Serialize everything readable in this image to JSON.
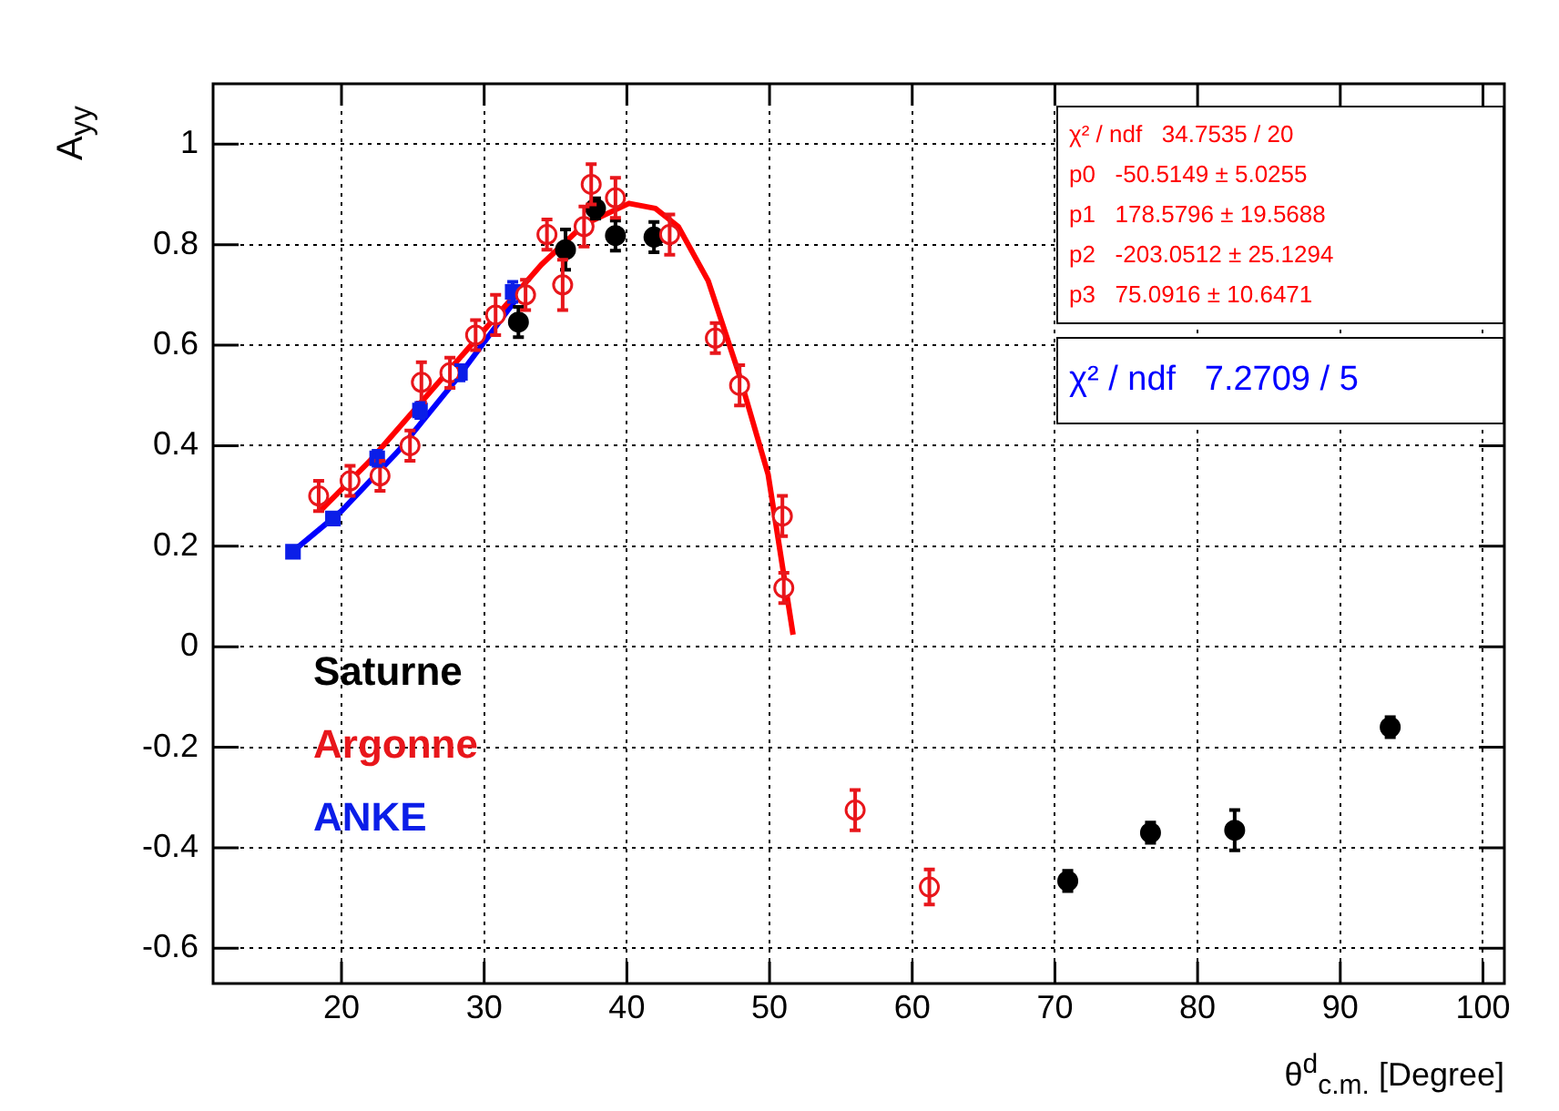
{
  "chart_data": {
    "type": "scatter",
    "xlabel": "θ$^{d}$$_{c.m.}$ [Degree]",
    "ylabel": "A$_{yy}$",
    "xlim": [
      11,
      101.5
    ],
    "xticks": [
      20,
      30,
      40,
      50,
      60,
      70,
      80,
      90,
      100
    ],
    "ylim": [
      -0.67,
      1.12
    ],
    "yticks": [
      -0.6,
      -0.4,
      -0.2,
      0,
      0.2,
      0.4,
      0.6,
      0.8,
      1
    ],
    "grid": true,
    "legend": "bottom left",
    "annotations": [
      "χ² / ndf   34.7535 / 20",
      "p0   -50.5149 ± 5.0255",
      "p1   178.5796 ± 19.5688",
      "p2   -203.0512 ± 25.1294",
      "p3   75.0916 ± 10.6471",
      "χ² / ndf   7.2709 / 5"
    ],
    "series": [
      {
        "name": "Saturne",
        "marker": "circle",
        "color": "#000000",
        "x": [
          32.4,
          35.7,
          37.8,
          39.2,
          41.9,
          70.9,
          76.7,
          82.6,
          93.5
        ],
        "values": [
          0.646,
          0.79,
          0.872,
          0.818,
          0.815,
          -0.466,
          -0.37,
          -0.365,
          -0.16
        ],
        "errors": [
          0.03,
          0.04,
          0.02,
          0.03,
          0.03,
          0.02,
          0.02,
          0.04,
          0.02
        ]
      },
      {
        "name": "Argonne",
        "marker": "circle",
        "color": "#e8161b",
        "x": [
          18.4,
          20.6,
          22.7,
          24.8,
          25.6,
          27.6,
          29.4,
          30.8,
          32.9,
          34.4,
          35.5,
          37.0,
          37.5,
          39.2,
          43.0,
          46.2,
          47.9,
          50.9,
          51.0,
          56.0,
          61.2
        ],
        "values": [
          0.3,
          0.33,
          0.34,
          0.4,
          0.526,
          0.545,
          0.62,
          0.66,
          0.7,
          0.82,
          0.72,
          0.836,
          0.92,
          0.893,
          0.82,
          0.614,
          0.52,
          0.26,
          0.117,
          -0.325,
          -0.478
        ],
        "errors": [
          0.03,
          0.03,
          0.03,
          0.03,
          0.04,
          0.03,
          0.03,
          0.04,
          0.03,
          0.03,
          0.05,
          0.04,
          0.04,
          0.04,
          0.04,
          0.03,
          0.04,
          0.04,
          0.03,
          0.04,
          0.035
        ]
      },
      {
        "name": "ANKE",
        "marker": "square",
        "color": "#0b1ee8",
        "x": [
          16.6,
          19.4,
          22.5,
          25.5,
          28.3,
          32.0
        ],
        "values": [
          0.189,
          0.255,
          0.375,
          0.47,
          0.545,
          0.706
        ],
        "errors": [
          null,
          null,
          0.015,
          0.015,
          0.015,
          0.02
        ]
      },
      {
        "type": "line",
        "marker": "none",
        "color": "#ff0000",
        "x": [
          18.5,
          22,
          26,
          30,
          34,
          37,
          40.15,
          42,
          43.6,
          45.7,
          47.8,
          49.9,
          51.65
        ],
        "values": [
          0.27,
          0.37,
          0.5,
          0.63,
          0.76,
          0.84,
          0.882,
          0.872,
          0.836,
          0.728,
          0.548,
          0.343,
          0.024
        ]
      },
      {
        "type": "line",
        "marker": "none",
        "color": "#0000ff",
        "x": [
          16.6,
          20,
          24,
          28,
          32.2
        ],
        "values": [
          0.19,
          0.27,
          0.39,
          0.53,
          0.69
        ]
      }
    ]
  }
}
